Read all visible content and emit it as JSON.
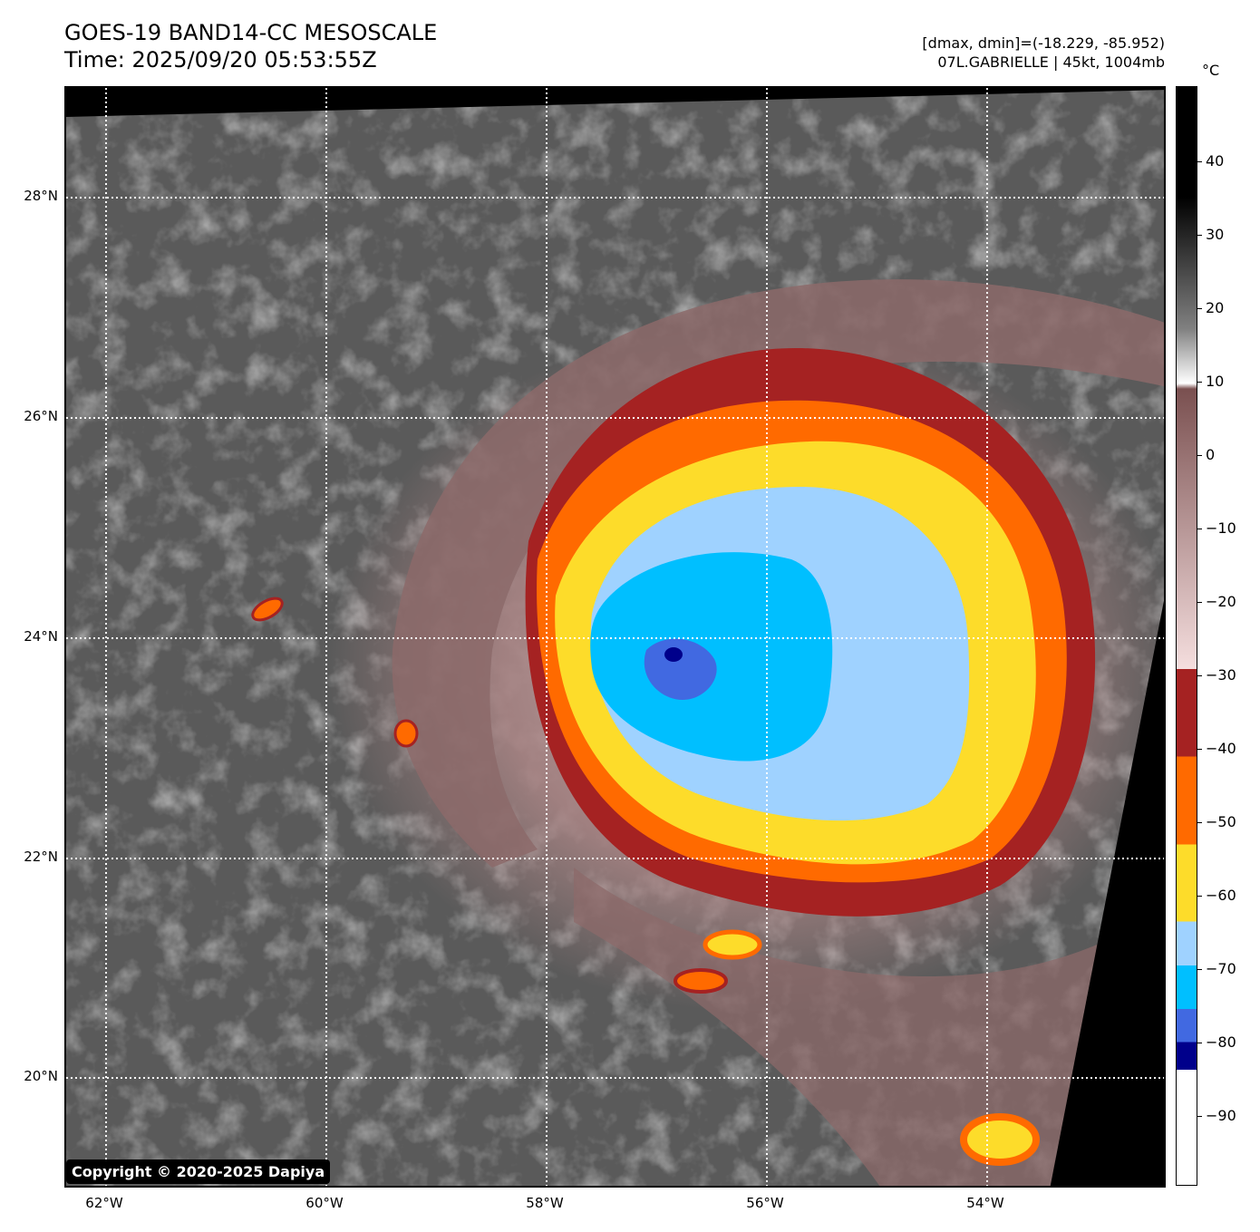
{
  "header": {
    "title_line1": "GOES-19 BAND14-CC MESOSCALE",
    "title_line2": "Time: 2025/09/20 05:53:55Z",
    "info_line1": "[dmax, dmin]=(-18.229, -85.952)",
    "info_line2": "07L.GABRIELLE | 45kt, 1004mb"
  },
  "map": {
    "lat_labels": [
      "28°N",
      "26°N",
      "24°N",
      "22°N",
      "20°N"
    ],
    "lon_labels": [
      "62°W",
      "60°W",
      "58°W",
      "56°W",
      "54°W"
    ],
    "copyright": "Copyright © 2020-2025 Dapiya"
  },
  "colorbar": {
    "unit": "°C",
    "ticks": [
      "40",
      "30",
      "20",
      "10",
      "0",
      "−10",
      "−20",
      "−30",
      "−40",
      "−50",
      "−60",
      "−70",
      "−80",
      "−90"
    ],
    "colors": {
      "warm_black": "#000000",
      "gray": "#808080",
      "white": "#ffffff",
      "brown": "#7a5050",
      "pink": "#f5dede",
      "dark_red": "#a52222",
      "orange": "#ff6a00",
      "yellow": "#fddc2a",
      "light_blue": "#9fd2ff",
      "cyan": "#00bfff",
      "royal_blue": "#4169e1",
      "navy": "#00008b"
    }
  }
}
